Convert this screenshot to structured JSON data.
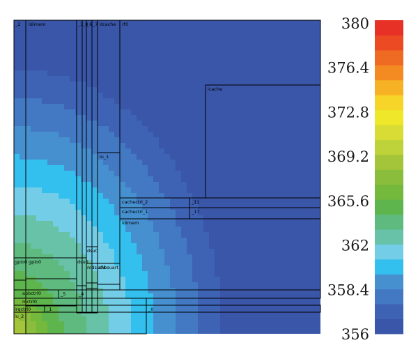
{
  "chart_data": {
    "type": "heatmap",
    "title": "",
    "colorbar": {
      "min": 356,
      "max": 380,
      "ticks": [
        "380",
        "376.4",
        "372.8",
        "369.2",
        "365.6",
        "362",
        "358.4",
        "356"
      ],
      "colors": [
        "#3a56a8",
        "#3e62b4",
        "#4378c2",
        "#4690d0",
        "#33c0ee",
        "#74cde6",
        "#67c2a8",
        "#5eba7e",
        "#5fb54d",
        "#74b83c",
        "#8abd3b",
        "#a4c53a",
        "#bed23a",
        "#d8dc34",
        "#eee72a",
        "#f7d428",
        "#f7b125",
        "#f48a22",
        "#ef6a22",
        "#eb4a23",
        "#e73127"
      ]
    },
    "blocks": [
      {
        "label": "_2"
      },
      {
        "label": "ldimem"
      },
      {
        "label": "_3"
      },
      {
        "label": "_8"
      },
      {
        "label": "_6"
      },
      {
        "label": "_7"
      },
      {
        "label": "dcache"
      },
      {
        "label": "rf0"
      },
      {
        "label": "icache"
      },
      {
        "label": "iu_1"
      },
      {
        "label": "cachectrl_2"
      },
      {
        "label": "_11"
      },
      {
        "label": "cachectrl_1"
      },
      {
        "label": "_17"
      },
      {
        "label": "ldimem"
      },
      {
        "label": "dsu0"
      },
      {
        "label": "gpio0"
      },
      {
        "label": "dsu0"
      },
      {
        "label": "mdsuclk"
      },
      {
        "label": "ahbsuart"
      },
      {
        "label": "gpio0"
      },
      {
        "label": "apbctrl0"
      },
      {
        "label": "_5"
      },
      {
        "label": "_4"
      },
      {
        "label": "mctrl0"
      },
      {
        "label": "irqctrl0"
      },
      {
        "label": "_1"
      },
      {
        "label": "_0"
      },
      {
        "label": "iu_2"
      }
    ]
  }
}
